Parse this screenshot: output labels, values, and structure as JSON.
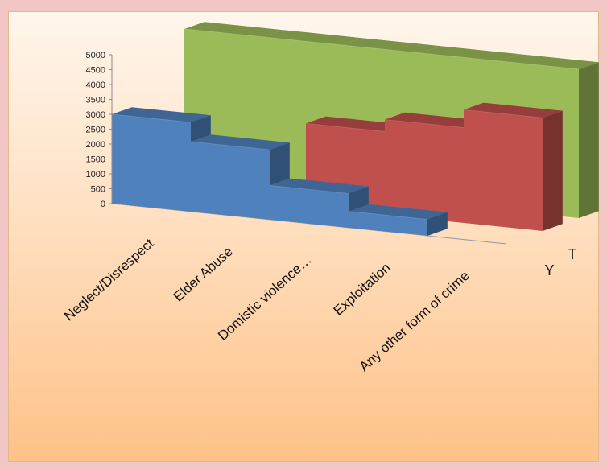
{
  "chart_data": {
    "type": "bar",
    "chart_style": "3d-area",
    "categories": [
      "Neglect/Disrespect",
      "Elder Abuse",
      "Domistic violence…",
      "Exploitation",
      "Any other form of crime"
    ],
    "y_ticks": [
      "0",
      "500",
      "1000",
      "1500",
      "2000",
      "2500",
      "3000",
      "3500",
      "4000",
      "4500",
      "5000"
    ],
    "ylim": [
      0,
      5000
    ],
    "depth_labels": [
      "Y",
      "T"
    ],
    "series": [
      {
        "key": "Y",
        "color": "#4f81bd",
        "values": [
          3000,
          2350,
          1150,
          550,
          0
        ]
      },
      {
        "key": "T",
        "color": "#c0504d",
        "values": [
          0,
          0,
          2800,
          3200,
          3800
        ]
      },
      {
        "key": "",
        "color": "#9bbb59",
        "values": [
          5000,
          5000,
          5000,
          5000,
          5000
        ]
      }
    ]
  }
}
